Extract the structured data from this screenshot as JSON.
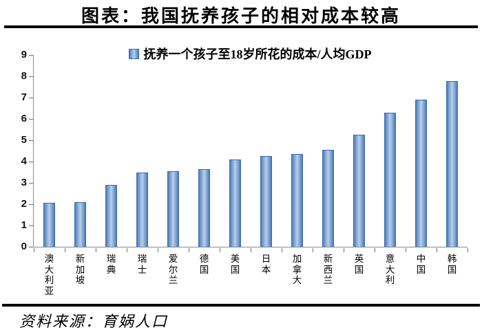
{
  "title": "图表：我国抚养孩子的相对成本较高",
  "source_note": "资料来源：育娲人口",
  "chart_data": {
    "type": "bar",
    "title": "图表：我国抚养孩子的相对成本较高",
    "legend": [
      "抚养一个孩子至18岁所花的成本/人均GDP"
    ],
    "legend_position": "top-center",
    "categories": [
      "澳大利亚",
      "新加坡",
      "瑞典",
      "瑞士",
      "爱尔兰",
      "德国",
      "美国",
      "日本",
      "加拿大",
      "新西兰",
      "英国",
      "意大利",
      "中国",
      "韩国"
    ],
    "values": [
      2.08,
      2.1,
      2.91,
      3.5,
      3.56,
      3.64,
      4.11,
      4.26,
      4.34,
      4.55,
      5.25,
      6.28,
      6.9,
      7.79
    ],
    "ylim": [
      0,
      9
    ],
    "yticks": [
      0,
      1,
      2,
      3,
      4,
      5,
      6,
      7,
      8,
      9
    ],
    "grid": false,
    "colors": {
      "bar_edge": "#4d7cba",
      "bar_center": "#bacee8",
      "bar_border": "#3c6baf",
      "axis_line": "#8a8a8a",
      "text": "#000000"
    }
  }
}
